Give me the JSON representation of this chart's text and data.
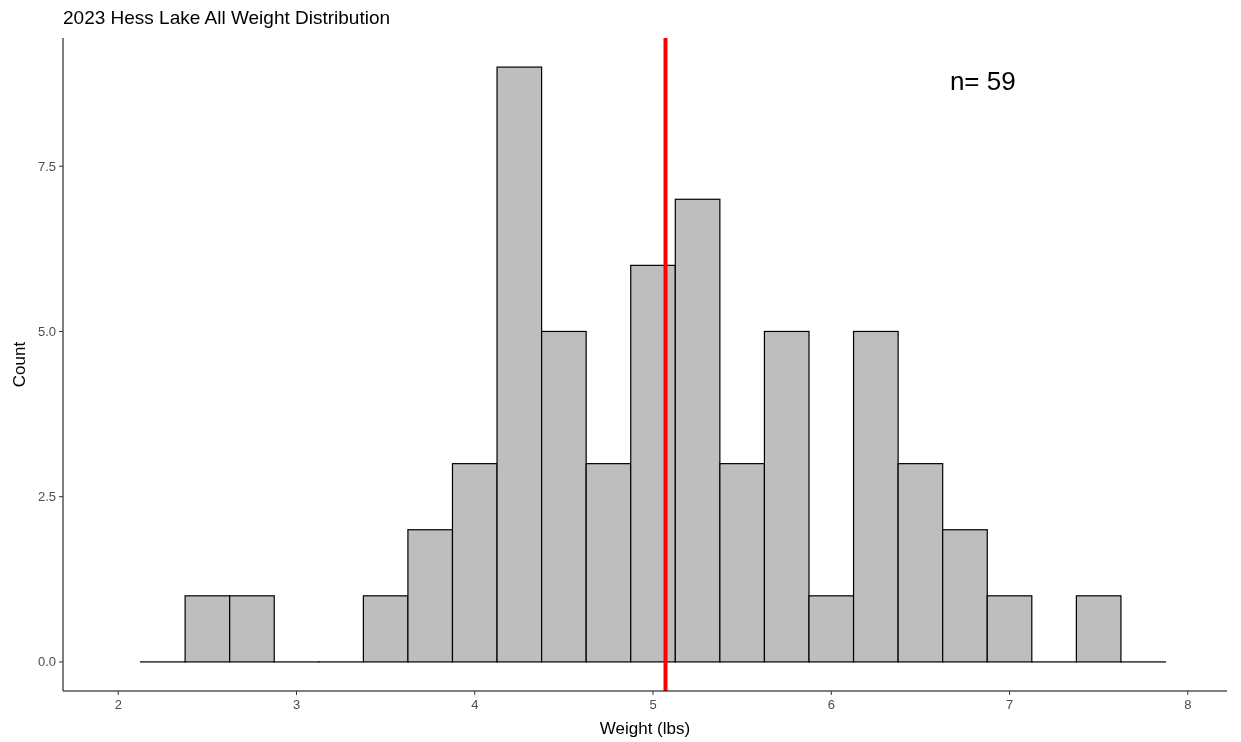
{
  "chart_data": {
    "type": "histogram",
    "title": "2023 Hess Lake All Weight Distribution",
    "xlabel": "Weight (lbs)",
    "ylabel": "Count",
    "bins": [
      2.125,
      2.375,
      2.625,
      2.875,
      3.125,
      3.375,
      3.625,
      3.875,
      4.125,
      4.375,
      4.625,
      4.875,
      5.125,
      5.375,
      5.625,
      5.875,
      6.125,
      6.375,
      6.625,
      6.875,
      7.125,
      7.375,
      7.625,
      7.875
    ],
    "values": [
      0,
      1,
      1,
      0,
      0,
      1,
      2,
      3,
      9,
      5,
      3,
      6,
      7,
      3,
      5,
      1,
      5,
      3,
      2,
      1,
      0,
      1,
      0
    ],
    "color": "#bebebe",
    "xlim": [
      1.69,
      8.22
    ],
    "xticks": [
      2,
      3,
      4,
      5,
      6,
      7,
      8
    ],
    "ylim": [
      -0.44,
      9.44
    ],
    "yticks": [
      {
        "value": 0,
        "label": "0.0"
      },
      {
        "value": 2.5,
        "label": "2.5"
      },
      {
        "value": 5,
        "label": "5.0"
      },
      {
        "value": 7.5,
        "label": "7.5"
      }
    ],
    "ref_lines": [
      {
        "axis": "x",
        "value": 5.07,
        "color": "#ff0000"
      }
    ],
    "annotations": [
      "n= 59"
    ],
    "grid": false
  }
}
